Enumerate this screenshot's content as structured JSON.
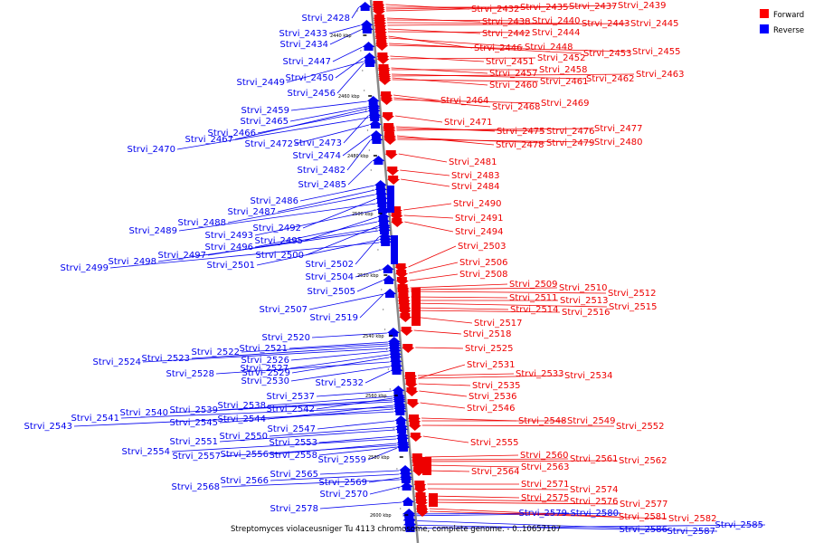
{
  "title": "Streptomyces violaceusniger Tu 4113 chromosome, complete genome. - 0..10657107",
  "legend": {
    "forward_label": "Forward",
    "reverse_label": "Reverse",
    "forward_color": "#ff0000",
    "reverse_color": "#0000ff"
  },
  "colors": {
    "forward": "#ee0000",
    "reverse": "#0000ee",
    "backbone": "#888888"
  },
  "ticks": [
    "2440 kbp",
    "2460 kbp",
    "2480 kbp",
    "2500 kbp",
    "2520 kbp",
    "2540 kbp",
    "2560 kbp",
    "2580 kbp",
    "2600 kbp"
  ],
  "reverse_genes": [
    "Strvi_2428",
    "Strvi_2433",
    "Strvi_2434",
    "Strvi_2447",
    "Strvi_2450",
    "Strvi_2449",
    "Strvi_2456",
    "Strvi_2459",
    "Strvi_2465",
    "Strvi_2466",
    "Strvi_2467",
    "Strvi_2473",
    "Strvi_2472",
    "Strvi_2470",
    "Strvi_2474",
    "Strvi_2482",
    "Strvi_2485",
    "Strvi_2486",
    "Strvi_2487",
    "Strvi_2488",
    "Strvi_2492",
    "Strvi_2489",
    "Strvi_2493",
    "Strvi_2495",
    "Strvi_2496",
    "Strvi_2500",
    "Strvi_2497",
    "Strvi_2498",
    "Strvi_2502",
    "Strvi_2501",
    "Strvi_2499",
    "Strvi_2504",
    "Strvi_2505",
    "Strvi_2507",
    "Strvi_2519",
    "Strvi_2520",
    "Strvi_2521",
    "Strvi_2522",
    "Strvi_2523",
    "Strvi_2526",
    "Strvi_2524",
    "Strvi_2527",
    "Strvi_2529",
    "Strvi_2528",
    "Strvi_2530",
    "Strvi_2532",
    "Strvi_2537",
    "Strvi_2538",
    "Strvi_2542",
    "Strvi_2539",
    "Strvi_2540",
    "Strvi_2544",
    "Strvi_2541",
    "Strvi_2545",
    "Strvi_2543",
    "Strvi_2547",
    "Strvi_2550",
    "Strvi_2551",
    "Strvi_2553",
    "Strvi_2554",
    "Strvi_2556",
    "Strvi_2558",
    "Strvi_2557",
    "Strvi_2559",
    "Strvi_2565",
    "Strvi_2566",
    "Strvi_2569",
    "Strvi_2568",
    "Strvi_2570",
    "Strvi_2578",
    "Strvi_2579",
    "Strvi_2580",
    "Strvi_2586",
    "Strvi_2587",
    "Strvi_2585"
  ],
  "forward_genes": [
    "Strvi_2432",
    "Strvi_2435",
    "Strvi_2437",
    "Strvi_2439",
    "Strvi_2438",
    "Strvi_2440",
    "Strvi_2443",
    "Strvi_2445",
    "Strvi_2442",
    "Strvi_2444",
    "Strvi_2446",
    "Strvi_2448",
    "Strvi_2453",
    "Strvi_2455",
    "Strvi_2451",
    "Strvi_2452",
    "Strvi_2457",
    "Strvi_2458",
    "Strvi_2462",
    "Strvi_2463",
    "Strvi_2460",
    "Strvi_2461",
    "Strvi_2464",
    "Strvi_2468",
    "Strvi_2469",
    "Strvi_2471",
    "Strvi_2475",
    "Strvi_2476",
    "Strvi_2477",
    "Strvi_2478",
    "Strvi_2479",
    "Strvi_2480",
    "Strvi_2481",
    "Strvi_2483",
    "Strvi_2484",
    "Strvi_2490",
    "Strvi_2491",
    "Strvi_2494",
    "Strvi_2503",
    "Strvi_2506",
    "Strvi_2508",
    "Strvi_2509",
    "Strvi_2510",
    "Strvi_2512",
    "Strvi_2511",
    "Strvi_2513",
    "Strvi_2515",
    "Strvi_2514",
    "Strvi_2516",
    "Strvi_2517",
    "Strvi_2518",
    "Strvi_2525",
    "Strvi_2531",
    "Strvi_2533",
    "Strvi_2534",
    "Strvi_2535",
    "Strvi_2536",
    "Strvi_2546",
    "Strvi_2548",
    "Strvi_2549",
    "Strvi_2552",
    "Strvi_2555",
    "Strvi_2560",
    "Strvi_2561",
    "Strvi_2562",
    "Strvi_2563",
    "Strvi_2564",
    "Strvi_2571",
    "Strvi_2574",
    "Strvi_2575",
    "Strvi_2576",
    "Strvi_2577",
    "Strvi_2581",
    "Strvi_2582"
  ]
}
